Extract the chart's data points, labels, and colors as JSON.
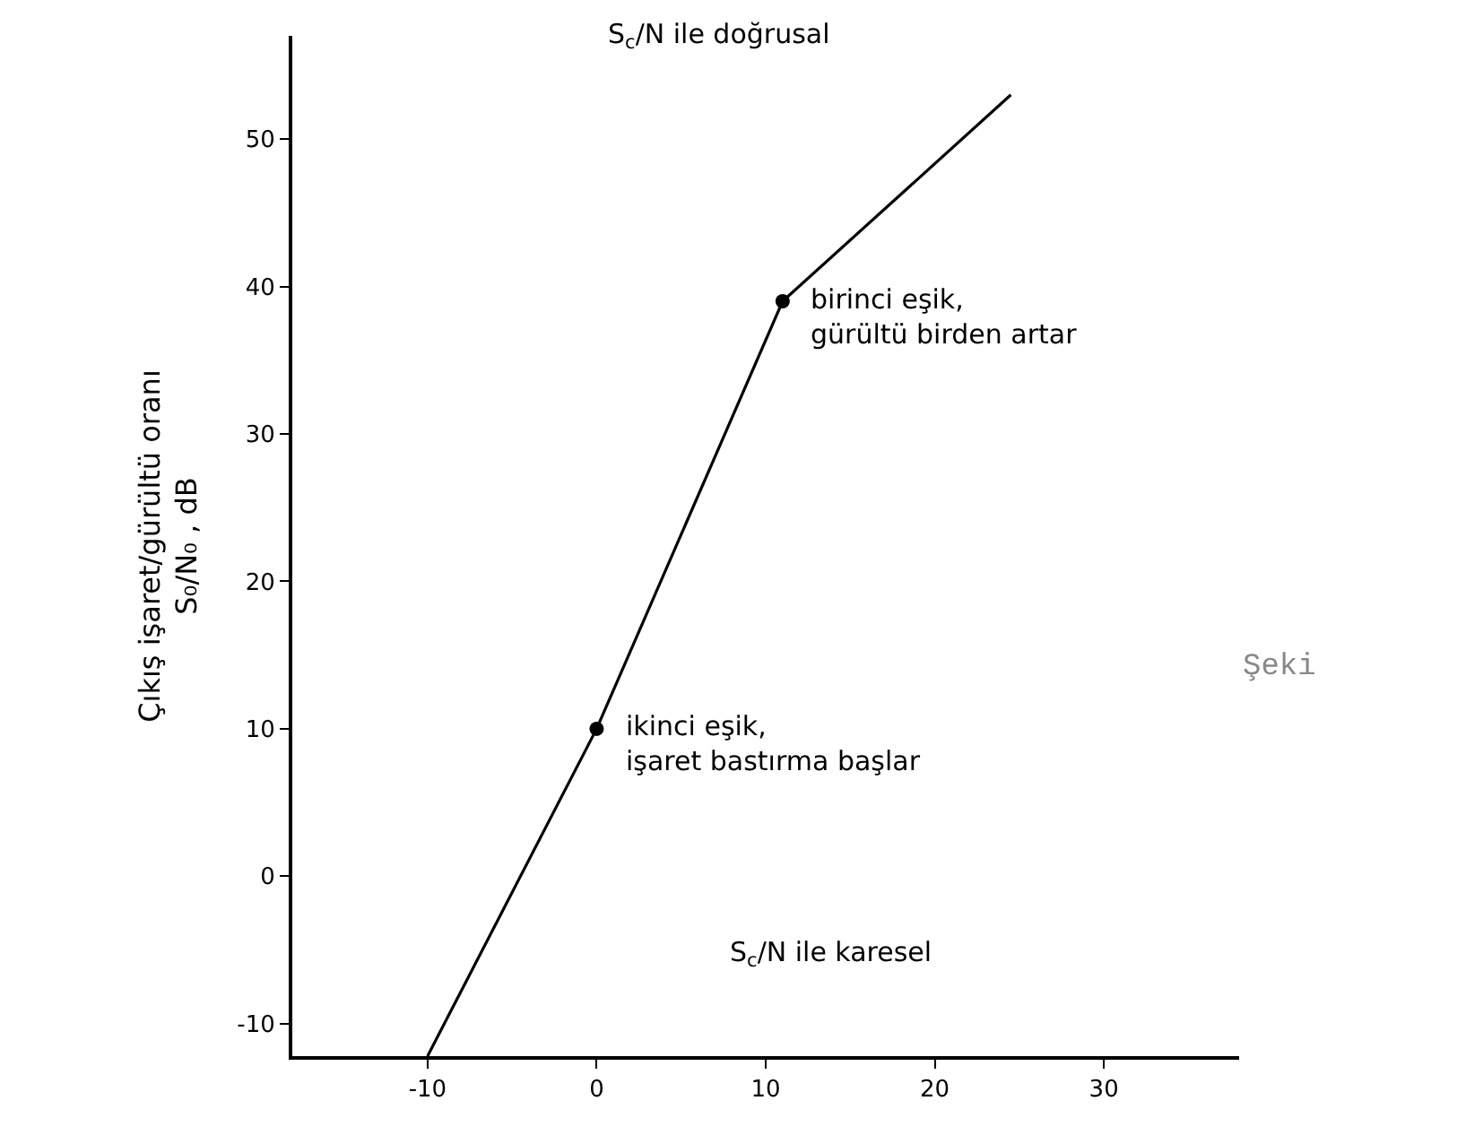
{
  "chart_data": {
    "type": "line",
    "xlim": [
      -18,
      38
    ],
    "ylim": [
      -12.2,
      57
    ],
    "xticks": [
      -10,
      0,
      10,
      20,
      30
    ],
    "yticks": [
      -10,
      0,
      10,
      20,
      30,
      40,
      50
    ],
    "ylabel": "Çıkış işaret/gürültü oranı\nS₀/N₀ , dB",
    "series": [
      {
        "color": "#000000",
        "marker": "none",
        "line_style": "solid",
        "x": [
          -10,
          0,
          11,
          24.5
        ],
        "values": [
          -12.2,
          10,
          39,
          53
        ]
      },
      {
        "type": "scatter",
        "color": "#000000",
        "marker": "circle",
        "x": [
          0,
          11
        ],
        "values": [
          10,
          39
        ]
      }
    ],
    "annotations": [
      "S$_{c}$/N ile doğrusal",
      {
        "text": "birinci eşik,\ngürültü birden artar",
        "x": 11,
        "y": 39
      },
      {
        "text": "ikinci eşik,\nişaret bastırma başlar",
        "x": 0,
        "y": 10
      },
      "S$_{c}$/N ile karesel",
      "Şeki"
    ]
  }
}
